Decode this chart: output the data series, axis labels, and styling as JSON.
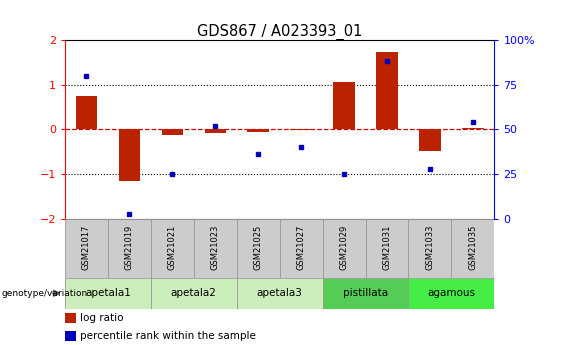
{
  "title": "GDS867 / A023393_01",
  "samples": [
    "GSM21017",
    "GSM21019",
    "GSM21021",
    "GSM21023",
    "GSM21025",
    "GSM21027",
    "GSM21029",
    "GSM21031",
    "GSM21033",
    "GSM21035"
  ],
  "log_ratio": [
    0.75,
    -1.15,
    -0.12,
    -0.08,
    -0.05,
    -0.02,
    1.05,
    1.72,
    -0.48,
    0.04
  ],
  "percentile_rank": [
    80,
    3,
    25,
    52,
    36,
    40,
    25,
    88,
    28,
    54
  ],
  "ylim_left": [
    -2,
    2
  ],
  "ylim_right": [
    0,
    100
  ],
  "yticks_left": [
    -2,
    -1,
    0,
    1,
    2
  ],
  "yticks_right": [
    0,
    25,
    50,
    75,
    100
  ],
  "bar_color_red": "#bb2200",
  "dot_color_blue": "#0000bb",
  "red_dashed_color": "#cc0000",
  "black_dot_color": "#000000",
  "legend_red_label": "log ratio",
  "legend_blue_label": "percentile rank within the sample",
  "genotype_label": "genotype/variation",
  "background_color": "#ffffff",
  "groups_info": [
    {
      "label": "apetala1",
      "indices": [
        0,
        1
      ],
      "color": "#cceebb"
    },
    {
      "label": "apetala2",
      "indices": [
        2,
        3
      ],
      "color": "#cceebb"
    },
    {
      "label": "apetala3",
      "indices": [
        4,
        5
      ],
      "color": "#cceebb"
    },
    {
      "label": "pistillata",
      "indices": [
        6,
        7
      ],
      "color": "#55cc55"
    },
    {
      "label": "agamous",
      "indices": [
        8,
        9
      ],
      "color": "#44ee44"
    }
  ],
  "sample_cell_color": "#cccccc",
  "sample_cell_edge_color": "#999999",
  "bar_width": 0.5
}
